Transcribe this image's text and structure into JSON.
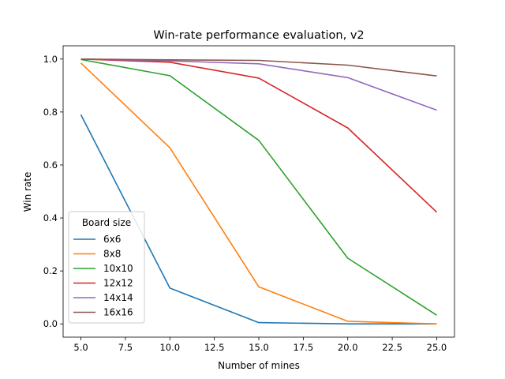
{
  "chart_data": {
    "type": "line",
    "title": "Win-rate performance evaluation, v2",
    "xlabel": "Number of mines",
    "ylabel": "Win rate",
    "x": [
      5,
      10,
      15,
      20,
      25
    ],
    "xlim": [
      4,
      26
    ],
    "ylim": [
      -0.05,
      1.05
    ],
    "xticks": [
      5.0,
      7.5,
      10.0,
      12.5,
      15.0,
      17.5,
      20.0,
      22.5,
      25.0
    ],
    "xtick_labels": [
      "5.0",
      "7.5",
      "10.0",
      "12.5",
      "15.0",
      "17.5",
      "20.0",
      "22.5",
      "25.0"
    ],
    "yticks": [
      0.0,
      0.2,
      0.4,
      0.6,
      0.8,
      1.0
    ],
    "ytick_labels": [
      "0.0",
      "0.2",
      "0.4",
      "0.6",
      "0.8",
      "1.0"
    ],
    "grid": false,
    "legend": {
      "title": "Board size",
      "placement": "lower-left"
    },
    "series": [
      {
        "name": "6x6",
        "color": "#1f77b4",
        "values": [
          0.79,
          0.135,
          0.005,
          0.0,
          0.0
        ]
      },
      {
        "name": "8x8",
        "color": "#ff7f0e",
        "values": [
          0.985,
          0.665,
          0.14,
          0.01,
          0.0
        ]
      },
      {
        "name": "10x10",
        "color": "#2ca02c",
        "values": [
          0.998,
          0.937,
          0.693,
          0.248,
          0.033
        ]
      },
      {
        "name": "12x12",
        "color": "#d62728",
        "values": [
          1.0,
          0.988,
          0.928,
          0.74,
          0.422
        ]
      },
      {
        "name": "14x14",
        "color": "#9467bd",
        "values": [
          1.0,
          0.993,
          0.982,
          0.93,
          0.807
        ]
      },
      {
        "name": "16x16",
        "color": "#8c564b",
        "values": [
          1.0,
          0.997,
          0.995,
          0.977,
          0.936
        ]
      }
    ]
  }
}
